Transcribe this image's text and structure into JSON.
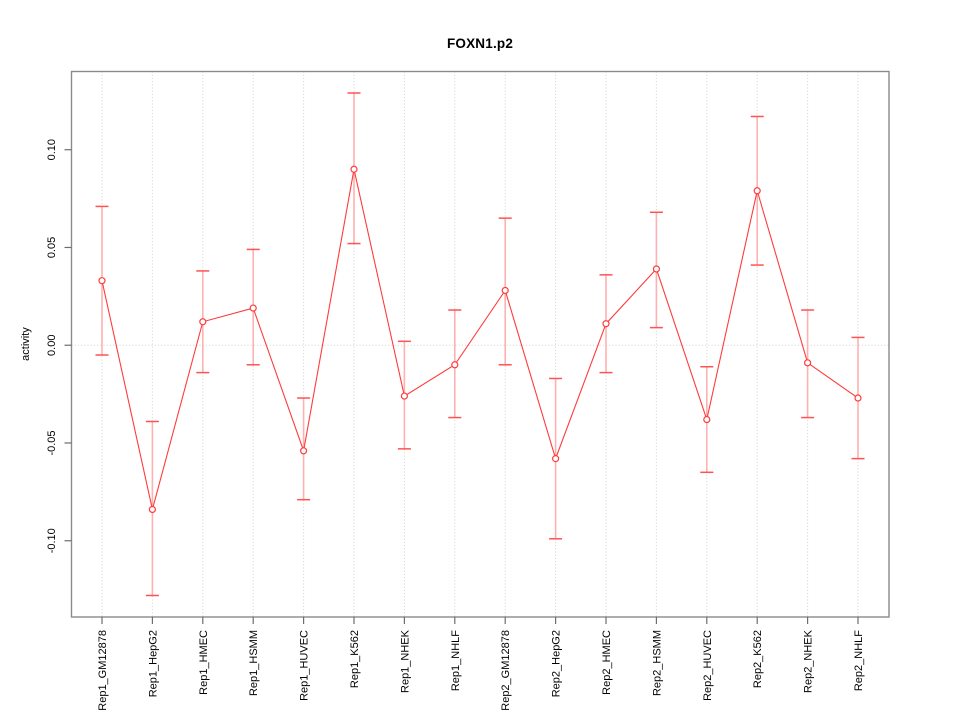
{
  "chart_data": {
    "type": "line",
    "title": "FOXN1.p2",
    "xlabel": "",
    "ylabel": "activity",
    "categories": [
      "Rep1_GM12878",
      "Rep1_HepG2",
      "Rep1_HMEC",
      "Rep1_HSMM",
      "Rep1_HUVEC",
      "Rep1_K562",
      "Rep1_NHEK",
      "Rep1_NHLF",
      "Rep2_GM12878",
      "Rep2_HepG2",
      "Rep2_HMEC",
      "Rep2_HSMM",
      "Rep2_HUVEC",
      "Rep2_K562",
      "Rep2_NHEK",
      "Rep2_NHLF"
    ],
    "series": [
      {
        "name": "activity",
        "values": [
          0.033,
          -0.084,
          0.012,
          0.019,
          -0.054,
          0.09,
          -0.026,
          -0.01,
          0.028,
          -0.058,
          0.011,
          0.039,
          -0.038,
          0.079,
          -0.009,
          -0.027
        ],
        "err_high": [
          0.071,
          -0.039,
          0.038,
          0.049,
          -0.027,
          0.129,
          0.002,
          0.018,
          0.065,
          -0.017,
          0.036,
          0.068,
          -0.011,
          0.117,
          0.018,
          0.004
        ],
        "err_low": [
          -0.005,
          -0.128,
          -0.014,
          -0.01,
          -0.079,
          0.052,
          -0.053,
          -0.037,
          -0.01,
          -0.099,
          -0.014,
          0.009,
          -0.065,
          0.041,
          -0.037,
          -0.058
        ]
      }
    ],
    "ylim": [
      -0.139,
      0.14
    ],
    "yticks": [
      -0.1,
      -0.05,
      0.0,
      0.05,
      0.1
    ],
    "ytick_labels": [
      "-0.10",
      "-0.05",
      "0.00",
      "0.05",
      "0.10"
    ],
    "grid": {
      "vertical": "dotted line at every category",
      "horizontal": "dotted line at y = 0 only"
    },
    "legend": "none",
    "marker": "open-circle",
    "colors": {
      "series": "#ff3b3b",
      "error_bar_shaft": "#ffb0b0",
      "error_bar_cap": "#ff5252",
      "gridline": "#d2d2d2",
      "frame": "#8a8a8a",
      "tick": "#6e6e6e",
      "text": "#000000",
      "background": "#ffffff"
    }
  }
}
